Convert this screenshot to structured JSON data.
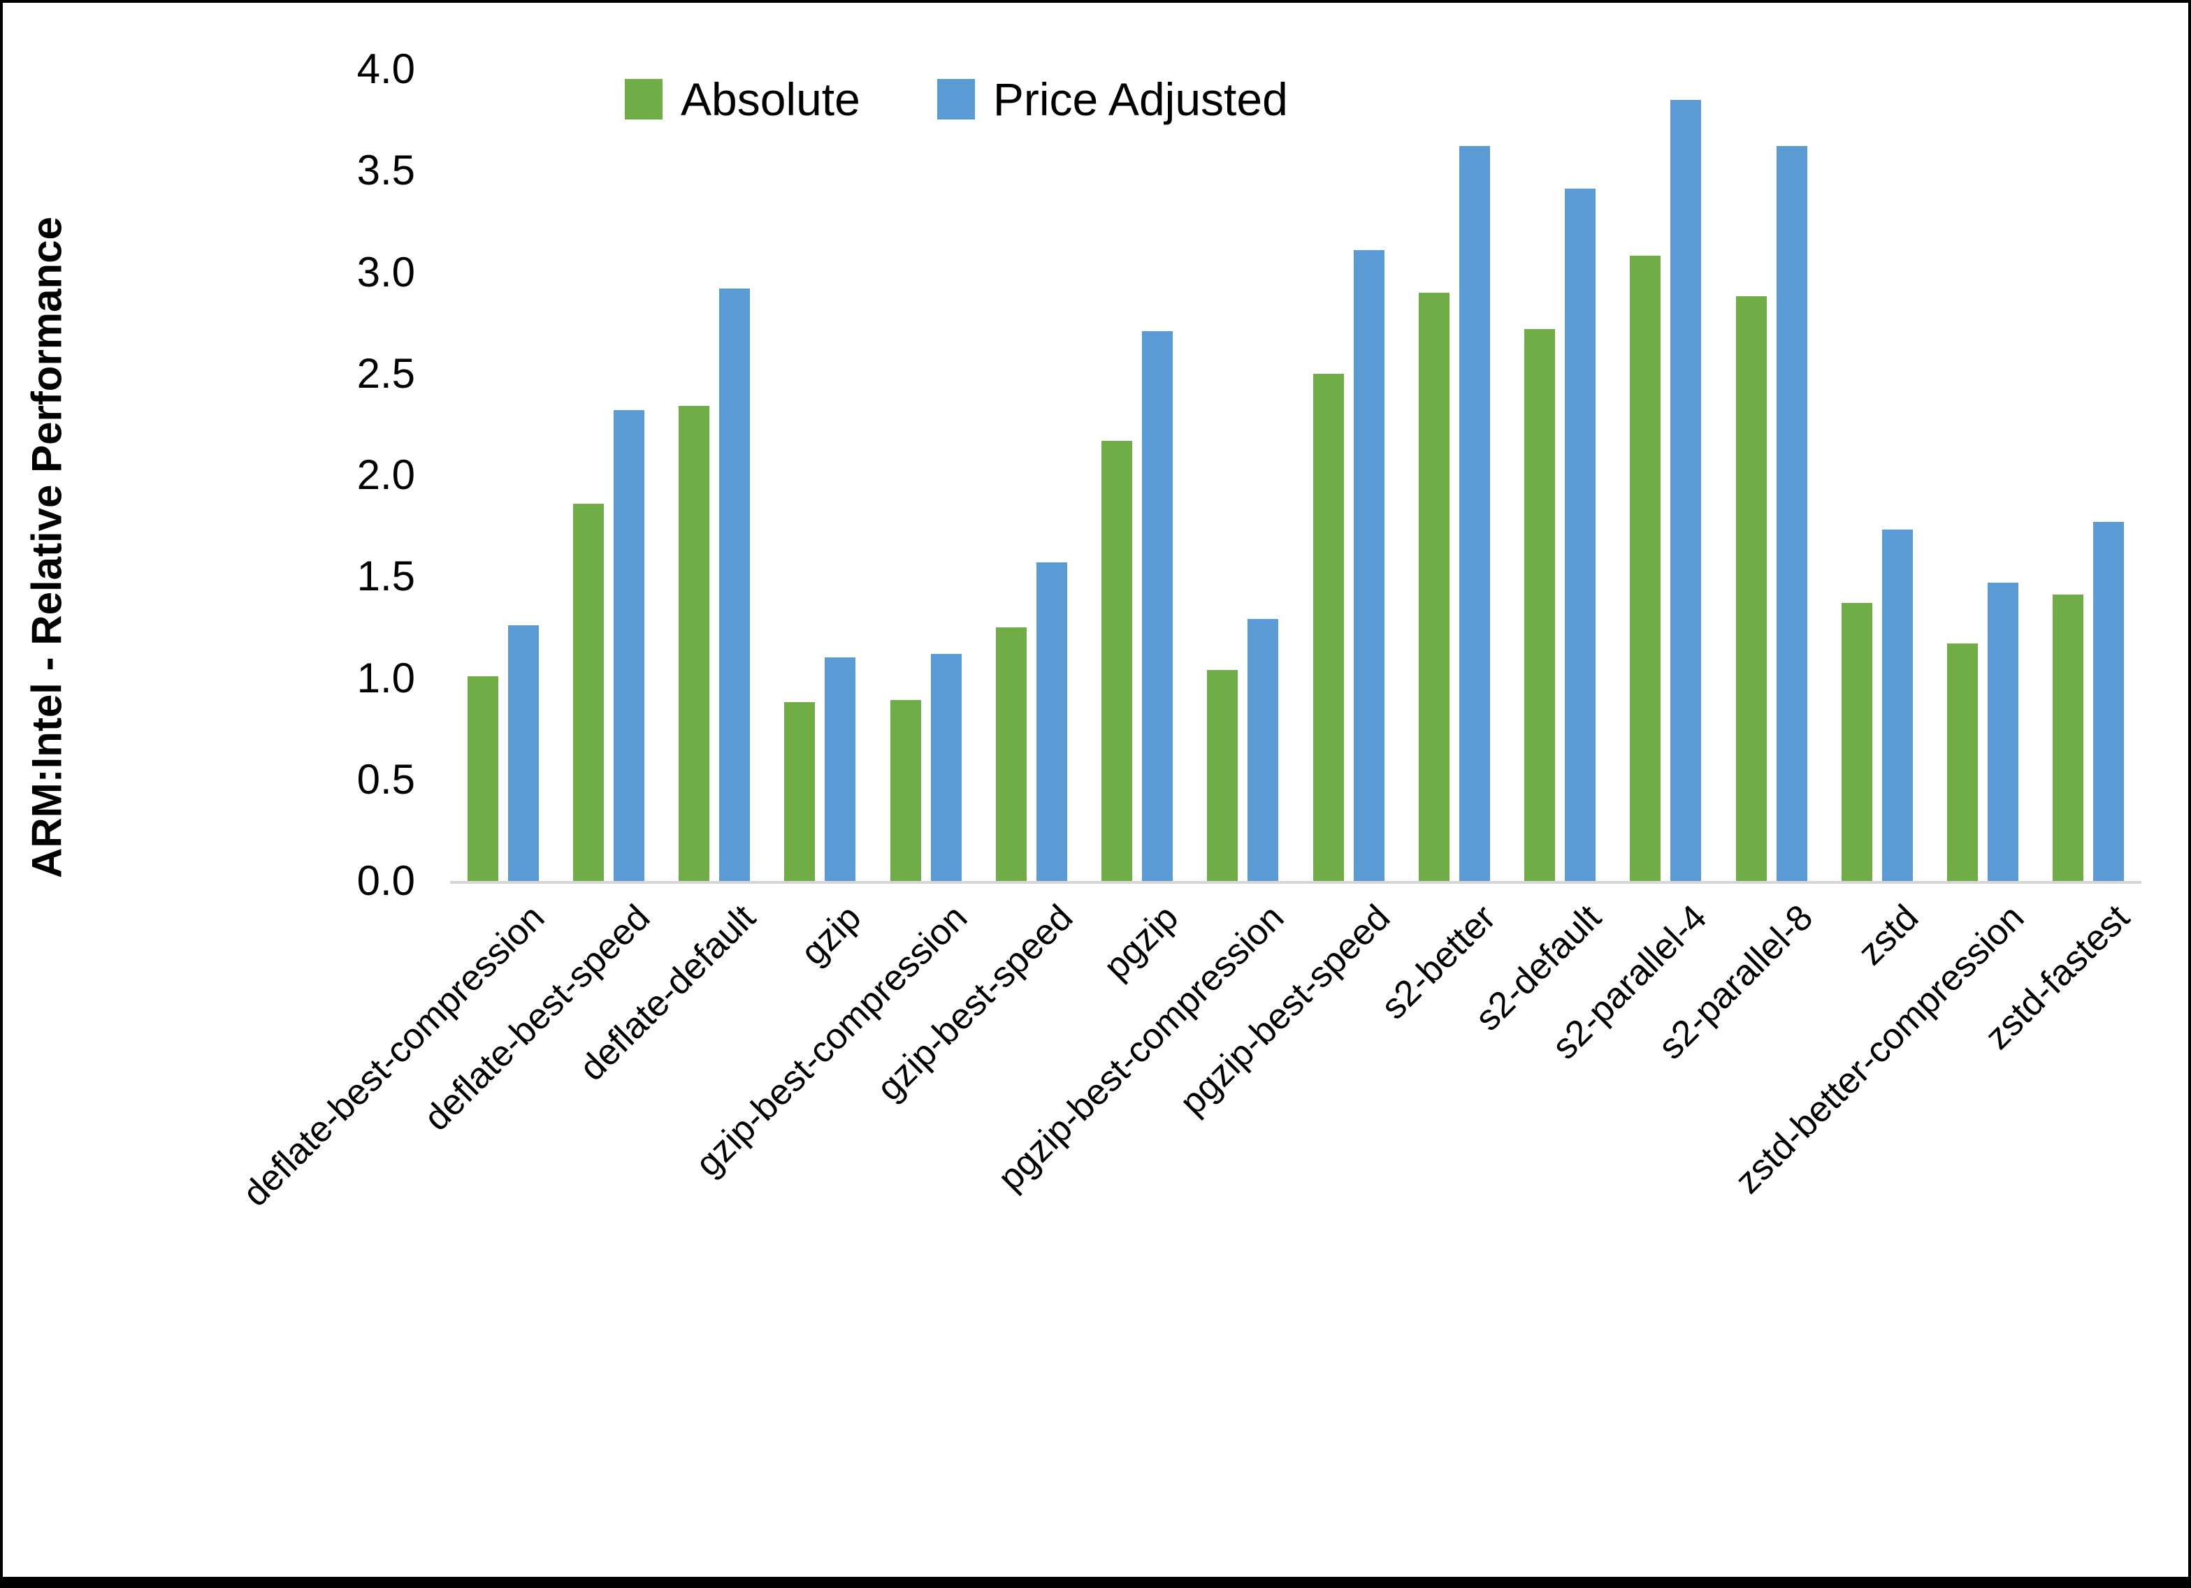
{
  "figure": {
    "background": "#FFFFFF",
    "border_color": "#000000"
  },
  "y_axis": {
    "title": "ARM:Intel - Relative Performance",
    "tick_labels": [
      "4.0",
      "3.5",
      "3.0",
      "2.5",
      "2.0",
      "1.5",
      "1.0",
      "0.5",
      "0.0"
    ],
    "axis_line_color": "#D6D6D6"
  },
  "legend": {
    "items": [
      {
        "label": "Absolute",
        "color": "#70AD47"
      },
      {
        "label": "Price Adjusted",
        "color": "#5B9BD5"
      }
    ]
  },
  "chart_data": {
    "type": "bar",
    "title": "",
    "xlabel": "",
    "ylabel": "ARM:Intel - Relative Performance",
    "ylim": [
      0.0,
      4.0
    ],
    "ytick_step": 0.5,
    "grid": false,
    "legend_position": "top",
    "categories": [
      "deflate-best-compression",
      "deflate-best-speed",
      "deflate-default",
      "gzip",
      "gzip-best-compression",
      "gzip-best-speed",
      "pgzip",
      "pgzip-best-compression",
      "pgzip-best-speed",
      "s2-better",
      "s2-default",
      "s2-parallel-4",
      "s2-parallel-8",
      "zstd",
      "zstd-better-compression",
      "zstd-fastest"
    ],
    "series": [
      {
        "name": "Absolute",
        "color": "#70AD47",
        "values": [
          1.01,
          1.86,
          2.34,
          0.88,
          0.89,
          1.25,
          2.17,
          1.04,
          2.5,
          2.9,
          2.72,
          3.08,
          2.88,
          1.37,
          1.17,
          1.41
        ]
      },
      {
        "name": "Price Adjusted",
        "color": "#5B9BD5",
        "values": [
          1.26,
          2.32,
          2.92,
          1.1,
          1.12,
          1.57,
          2.71,
          1.29,
          3.11,
          3.62,
          3.41,
          3.85,
          3.62,
          1.73,
          1.47,
          1.77
        ]
      }
    ]
  }
}
